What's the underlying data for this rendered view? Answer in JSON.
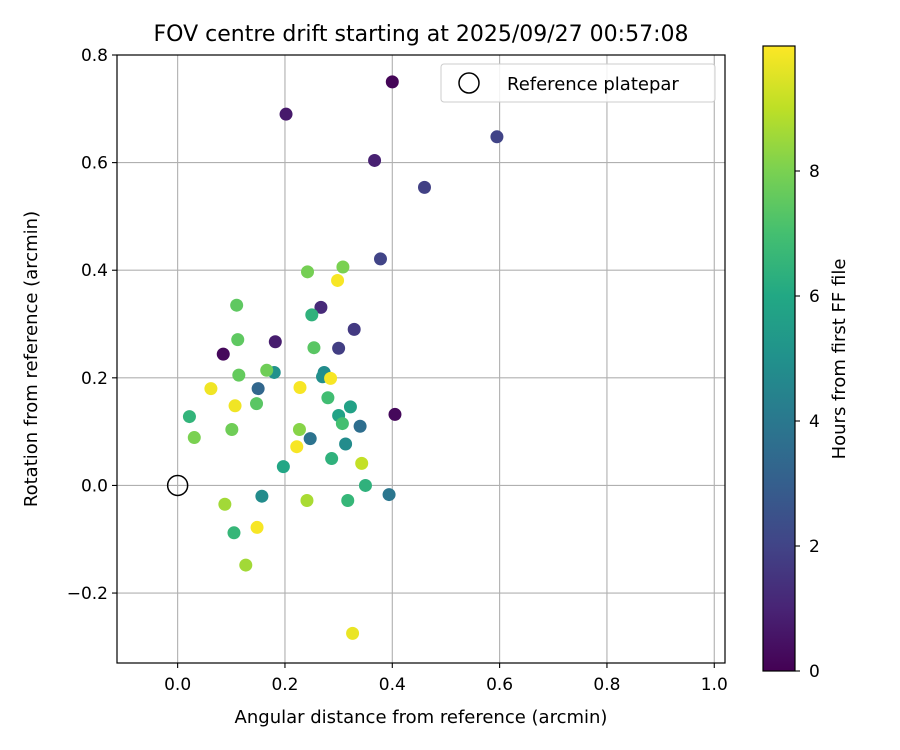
{
  "chart_data": {
    "type": "scatter",
    "title": "FOV centre drift starting at 2025/09/27 00:57:08",
    "xlabel": "Angular distance from reference (arcmin)",
    "ylabel": "Rotation from reference (arcmin)",
    "xlim": [
      -0.113,
      1.02
    ],
    "ylim": [
      -0.33,
      0.8
    ],
    "xticks": [
      0.0,
      0.2,
      0.4,
      0.6,
      0.8,
      1.0
    ],
    "xtick_labels": [
      "0.0",
      "0.2",
      "0.4",
      "0.6",
      "0.8",
      "1.0"
    ],
    "yticks": [
      -0.2,
      0.0,
      0.2,
      0.4,
      0.6,
      0.8
    ],
    "ytick_labels": [
      "−0.2",
      "0.0",
      "0.2",
      "0.4",
      "0.6",
      "0.8"
    ],
    "grid": true,
    "legend": {
      "label": "Reference platepar",
      "position": "top-right"
    },
    "reference_point": {
      "x": 0.0,
      "y": 0.0
    },
    "colorbar": {
      "label": "Hours from first FF file",
      "colormap": "viridis",
      "range": [
        0,
        10
      ],
      "ticks": [
        0,
        2,
        4,
        6,
        8
      ],
      "tick_labels": [
        "0",
        "2",
        "4",
        "6",
        "8"
      ],
      "stops": [
        "#440154",
        "#482475",
        "#414487",
        "#355f8d",
        "#2a788e",
        "#21918c",
        "#22a884",
        "#44bf70",
        "#7ad151",
        "#bddf26",
        "#fde725"
      ]
    },
    "points": [
      {
        "x": 0.4,
        "y": 0.75,
        "c": 0.1
      },
      {
        "x": 0.202,
        "y": 0.69,
        "c": 0.7
      },
      {
        "x": 0.367,
        "y": 0.604,
        "c": 0.9
      },
      {
        "x": 0.595,
        "y": 0.648,
        "c": 2.0
      },
      {
        "x": 0.46,
        "y": 0.554,
        "c": 1.9
      },
      {
        "x": 0.378,
        "y": 0.421,
        "c": 2.0
      },
      {
        "x": 0.405,
        "y": 0.132,
        "c": 0.2
      },
      {
        "x": 0.085,
        "y": 0.244,
        "c": 0.2
      },
      {
        "x": 0.182,
        "y": 0.267,
        "c": 0.8
      },
      {
        "x": 0.267,
        "y": 0.331,
        "c": 1.2
      },
      {
        "x": 0.329,
        "y": 0.29,
        "c": 1.7
      },
      {
        "x": 0.3,
        "y": 0.255,
        "c": 1.8
      },
      {
        "x": 0.15,
        "y": 0.18,
        "c": 3.3
      },
      {
        "x": 0.34,
        "y": 0.11,
        "c": 3.6
      },
      {
        "x": 0.247,
        "y": 0.087,
        "c": 3.8
      },
      {
        "x": 0.394,
        "y": -0.017,
        "c": 3.9
      },
      {
        "x": 0.18,
        "y": 0.21,
        "c": 5.0
      },
      {
        "x": 0.273,
        "y": 0.21,
        "c": 4.8
      },
      {
        "x": 0.27,
        "y": 0.202,
        "c": 4.9
      },
      {
        "x": 0.313,
        "y": 0.077,
        "c": 4.8
      },
      {
        "x": 0.157,
        "y": -0.02,
        "c": 4.8
      },
      {
        "x": 0.322,
        "y": 0.146,
        "c": 5.7
      },
      {
        "x": 0.3,
        "y": 0.13,
        "c": 5.8
      },
      {
        "x": 0.197,
        "y": 0.035,
        "c": 5.9
      },
      {
        "x": 0.25,
        "y": 0.317,
        "c": 6.4
      },
      {
        "x": 0.35,
        "y": 0.0,
        "c": 6.4
      },
      {
        "x": 0.022,
        "y": 0.128,
        "c": 6.5
      },
      {
        "x": 0.287,
        "y": 0.05,
        "c": 6.4
      },
      {
        "x": 0.317,
        "y": -0.028,
        "c": 6.6
      },
      {
        "x": 0.105,
        "y": -0.088,
        "c": 6.6
      },
      {
        "x": 0.28,
        "y": 0.163,
        "c": 6.9
      },
      {
        "x": 0.307,
        "y": 0.115,
        "c": 7.0
      },
      {
        "x": 0.254,
        "y": 0.256,
        "c": 7.4
      },
      {
        "x": 0.147,
        "y": 0.152,
        "c": 7.4
      },
      {
        "x": 0.11,
        "y": 0.335,
        "c": 7.5
      },
      {
        "x": 0.112,
        "y": 0.271,
        "c": 7.5
      },
      {
        "x": 0.114,
        "y": 0.205,
        "c": 7.6
      },
      {
        "x": 0.166,
        "y": 0.214,
        "c": 7.8
      },
      {
        "x": 0.101,
        "y": 0.104,
        "c": 7.8
      },
      {
        "x": 0.242,
        "y": 0.397,
        "c": 7.9
      },
      {
        "x": 0.308,
        "y": 0.406,
        "c": 8.0
      },
      {
        "x": 0.031,
        "y": 0.089,
        "c": 8.0
      },
      {
        "x": 0.227,
        "y": 0.104,
        "c": 8.2
      },
      {
        "x": 0.088,
        "y": -0.035,
        "c": 8.6
      },
      {
        "x": 0.241,
        "y": -0.028,
        "c": 8.7
      },
      {
        "x": 0.127,
        "y": -0.148,
        "c": 8.6
      },
      {
        "x": 0.343,
        "y": 0.041,
        "c": 9.1
      },
      {
        "x": 0.298,
        "y": 0.381,
        "c": 9.9
      },
      {
        "x": 0.285,
        "y": 0.199,
        "c": 9.9
      },
      {
        "x": 0.228,
        "y": 0.182,
        "c": 9.9
      },
      {
        "x": 0.062,
        "y": 0.18,
        "c": 9.8
      },
      {
        "x": 0.107,
        "y": 0.148,
        "c": 9.8
      },
      {
        "x": 0.222,
        "y": 0.072,
        "c": 9.9
      },
      {
        "x": 0.148,
        "y": -0.078,
        "c": 9.9
      },
      {
        "x": 0.326,
        "y": -0.275,
        "c": 9.7
      }
    ]
  }
}
